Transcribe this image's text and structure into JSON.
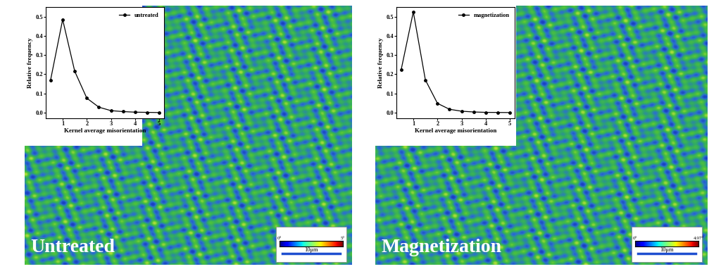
{
  "chart_data": [
    {
      "type": "line",
      "x": [
        0.5,
        1.0,
        1.5,
        2.0,
        2.5,
        3.0,
        3.5,
        4.0,
        4.5,
        5.0
      ],
      "series": [
        {
          "name": "untreated",
          "color": "#000000",
          "marker": "o",
          "line_style": "solid",
          "values": [
            0.17,
            0.485,
            0.215,
            0.075,
            0.028,
            0.01,
            0.005,
            0.002,
            0.001,
            0.0
          ]
        }
      ],
      "xlabel": "Kernel average misorientation",
      "ylabel": "Relative frequency",
      "xlim": [
        0.3,
        5.2
      ],
      "ylim": [
        -0.03,
        0.55
      ],
      "xticks": [
        1,
        2,
        3,
        4,
        5
      ],
      "yticks": [
        0.0,
        0.1,
        0.2,
        0.3,
        0.4,
        0.5
      ],
      "legend": "upper right"
    },
    {
      "type": "line",
      "x": [
        0.5,
        1.0,
        1.5,
        2.0,
        2.5,
        3.0,
        3.5,
        4.0,
        4.5,
        5.0
      ],
      "series": [
        {
          "name": "magnetization",
          "color": "#000000",
          "marker": "o",
          "line_style": "solid",
          "values": [
            0.225,
            0.525,
            0.17,
            0.048,
            0.017,
            0.007,
            0.003,
            0.001,
            0.0005,
            0.0
          ]
        }
      ],
      "xlabel": "Kernel average misorientation",
      "ylabel": "Relative frequency",
      "xlim": [
        0.3,
        5.2
      ],
      "ylim": [
        -0.03,
        0.55
      ],
      "xticks": [
        1,
        2,
        3,
        4,
        5
      ],
      "yticks": [
        0.0,
        0.1,
        0.2,
        0.3,
        0.4,
        0.5
      ],
      "legend": "upper right"
    }
  ],
  "panels": [
    {
      "label": "Untreated",
      "colorbar": {
        "range": [
          0,
          5
        ],
        "ticks": [
          {
            "value": 0,
            "label": "0°"
          },
          {
            "value": 5,
            "label": "5°"
          }
        ]
      },
      "scale_bar": "10μm"
    },
    {
      "label": "Magnetization",
      "colorbar": {
        "range": [
          0,
          4.97
        ],
        "ticks": [
          {
            "value": 0,
            "label": "0°"
          },
          {
            "value": 4.97,
            "label": "4.97°"
          }
        ]
      },
      "scale_bar": "10μm"
    }
  ]
}
